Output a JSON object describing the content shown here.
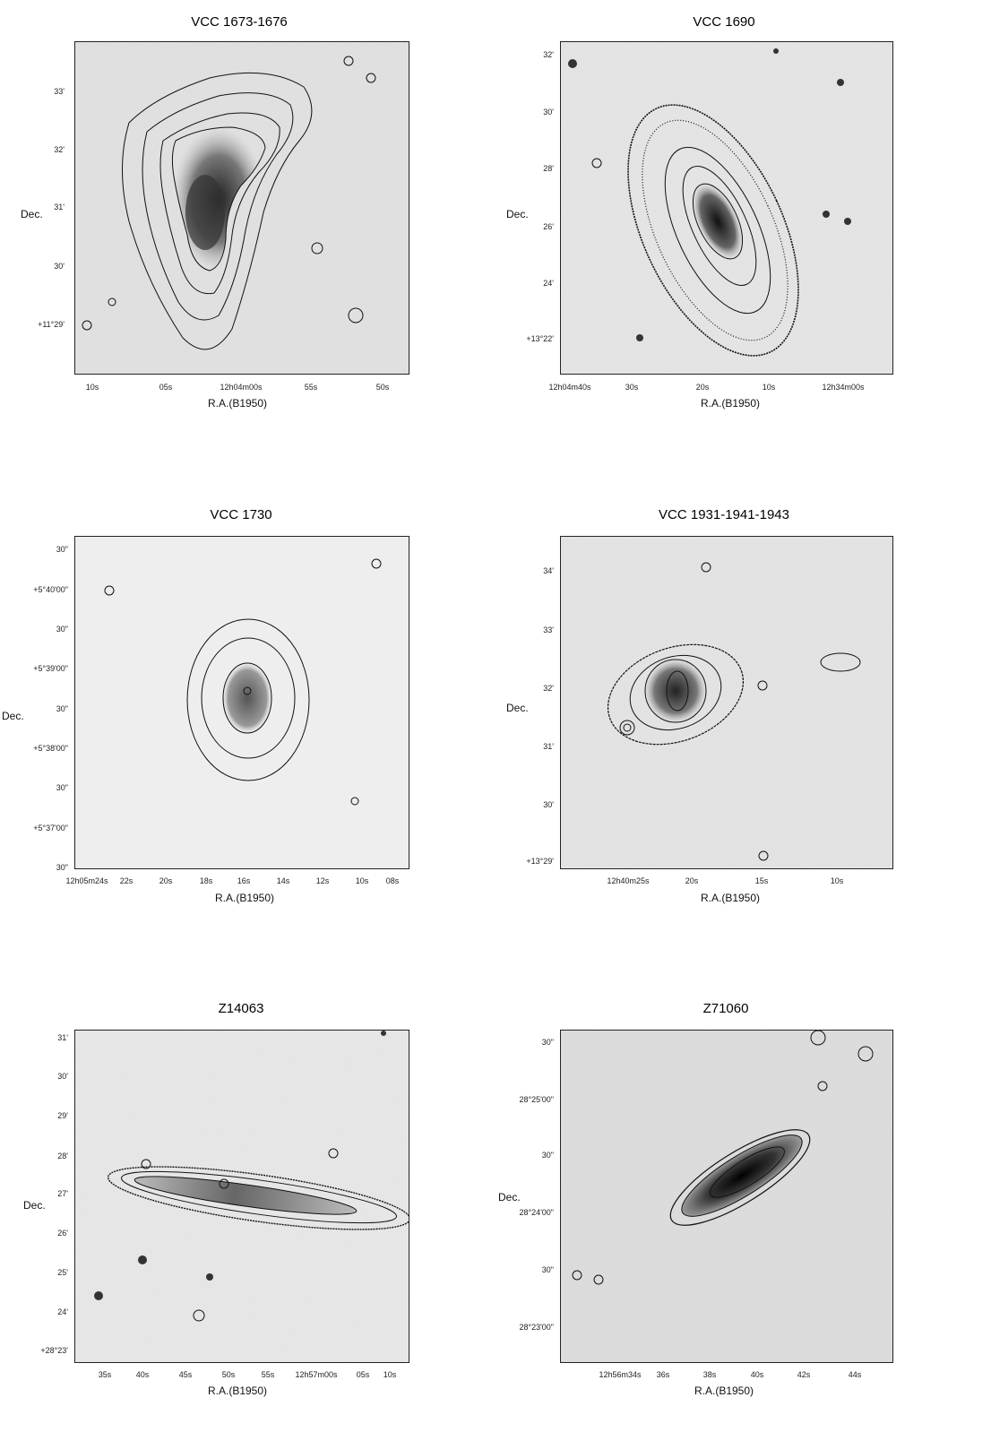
{
  "panels": [
    {
      "title": "VCC 1673-1676",
      "xlabel": "R.A.(B1950)",
      "ylabel": "Dec.",
      "yticks": [
        "33'",
        "32'",
        "31'",
        "30'",
        "+11°29'"
      ],
      "xticks": [
        "10s",
        "05s",
        "12h04m00s",
        "55s",
        "50s"
      ]
    },
    {
      "title": "VCC 1690",
      "xlabel": "R.A.(B1950)",
      "ylabel": "Dec.",
      "yticks": [
        "32'",
        "30'",
        "28'",
        "26'",
        "24'",
        "+13°22'"
      ],
      "xticks": [
        "12h04m40s",
        "30s",
        "20s",
        "10s",
        "12h34m00s"
      ]
    },
    {
      "title": "VCC 1730",
      "xlabel": "R.A.(B1950)",
      "ylabel": "Dec.",
      "yticks": [
        "30\"",
        "+5°40'00\"",
        "30\"",
        "+5°39'00\"",
        "30\"",
        "+5°38'00\"",
        "30\"",
        "+5°37'00\"",
        "30\""
      ],
      "xticks": [
        "12h05m24s",
        "22s",
        "20s",
        "18s",
        "16s",
        "14s",
        "12s",
        "10s",
        "08s"
      ]
    },
    {
      "title": "VCC 1931-1941-1943",
      "xlabel": "R.A.(B1950)",
      "ylabel": "Dec.",
      "yticks": [
        "34'",
        "33'",
        "32'",
        "31'",
        "30'",
        "+13°29'"
      ],
      "xticks": [
        "12h40m25s",
        "20s",
        "15s",
        "10s"
      ]
    },
    {
      "title": "Z14063",
      "xlabel": "R.A.(B1950)",
      "ylabel": "Dec.",
      "yticks": [
        "31'",
        "30'",
        "29'",
        "28'",
        "27'",
        "26'",
        "25'",
        "24'",
        "+28°23'"
      ],
      "xticks": [
        "35s",
        "40s",
        "45s",
        "50s",
        "55s",
        "12h57m00s",
        "05s",
        "10s"
      ]
    },
    {
      "title": "Z71060",
      "xlabel": "R.A.(B1950)",
      "ylabel": "Dec.",
      "yticks": [
        "30\"",
        "28°25'00\"",
        "30\"",
        "28°24'00\"",
        "30\"",
        "28°23'00\""
      ],
      "xticks": [
        "12h56m34s",
        "36s",
        "38s",
        "40s",
        "42s",
        "44s"
      ]
    }
  ]
}
